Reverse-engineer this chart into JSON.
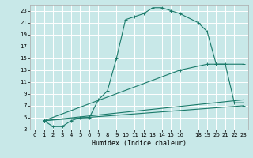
{
  "xlabel": "Humidex (Indice chaleur)",
  "bg_color": "#c8e8e8",
  "grid_color": "#ffffff",
  "line_color": "#1a7a6a",
  "xlim": [
    -0.5,
    23.5
  ],
  "ylim": [
    3,
    24
  ],
  "xticks": [
    0,
    1,
    2,
    3,
    4,
    5,
    6,
    7,
    8,
    9,
    10,
    11,
    12,
    13,
    14,
    15,
    16,
    18,
    19,
    20,
    21,
    22,
    23
  ],
  "yticks": [
    3,
    5,
    7,
    9,
    11,
    13,
    15,
    17,
    19,
    21,
    23
  ],
  "curve1_x": [
    1,
    2,
    3,
    4,
    5,
    6,
    7,
    8,
    9,
    10,
    11,
    12,
    13,
    14,
    15,
    16,
    18,
    19,
    20,
    23
  ],
  "curve1_y": [
    4.5,
    3.5,
    3.5,
    4.5,
    5,
    5,
    8,
    9.5,
    15,
    21.5,
    22,
    22.5,
    23.5,
    23.5,
    23,
    22.5,
    21,
    19.5,
    14,
    14
  ],
  "curve2_x": [
    1,
    16,
    19,
    20,
    21,
    22,
    23
  ],
  "curve2_y": [
    4.5,
    13,
    14,
    14,
    14,
    7.5,
    7.5
  ],
  "curve3_x": [
    1,
    23
  ],
  "curve3_y": [
    4.5,
    8
  ],
  "curve4_x": [
    1,
    23
  ],
  "curve4_y": [
    4.5,
    7
  ]
}
